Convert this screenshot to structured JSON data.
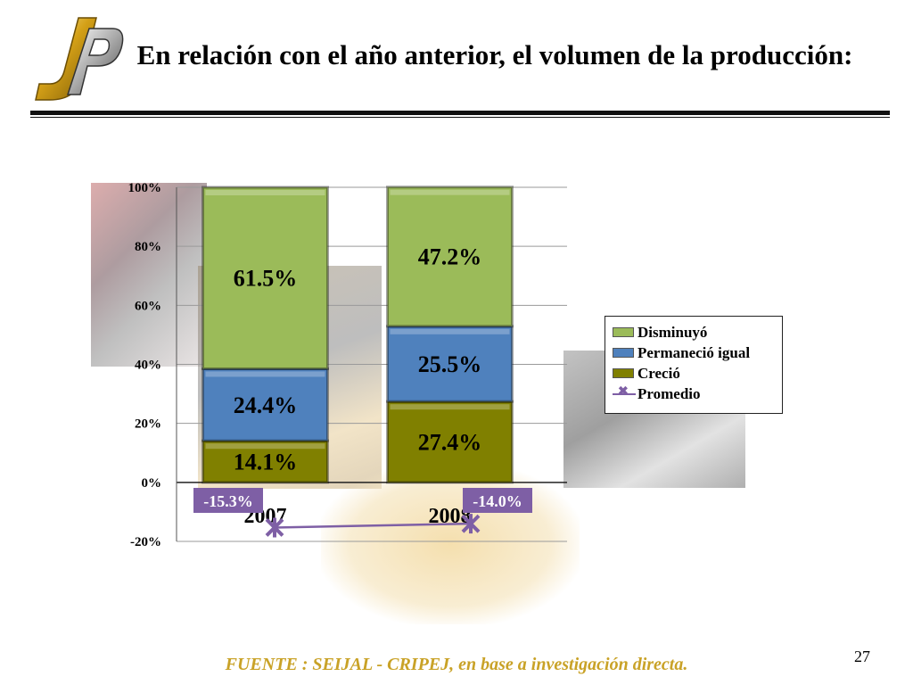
{
  "header": {
    "logo_text": "JP",
    "title": "En relación con el año anterior, el volumen de la producción:"
  },
  "chart_data": {
    "type": "bar",
    "stacked": true,
    "categories": [
      "2007",
      "2008"
    ],
    "series": [
      {
        "name": "Creció",
        "values": [
          14.1,
          27.4
        ],
        "labels": [
          "14.1%",
          "27.4%"
        ],
        "color": "#808000"
      },
      {
        "name": "Permaneció igual",
        "values": [
          24.4,
          25.5
        ],
        "labels": [
          "24.4%",
          "25.5%"
        ],
        "color": "#4f81bd"
      },
      {
        "name": "Disminuyó",
        "values": [
          61.5,
          47.2
        ],
        "labels": [
          "61.5%",
          "47.2%"
        ],
        "color": "#9bbb59"
      }
    ],
    "line_series": {
      "name": "Promedio",
      "values": [
        -15.3,
        -14.0
      ],
      "labels": [
        "-15.3%",
        "-14.0%"
      ],
      "color": "#7e5fa5"
    },
    "ylim": [
      -20,
      100
    ],
    "yticks": [
      -20,
      0,
      20,
      40,
      60,
      80,
      100
    ],
    "ytick_labels": [
      "-20%",
      "0%",
      "20%",
      "40%",
      "60%",
      "80%",
      "100%"
    ],
    "grid": true,
    "legend_position": "right",
    "legend_order": [
      "Disminuyó",
      "Permaneció igual",
      "Creció",
      "Promedio"
    ]
  },
  "footer": {
    "source": "FUENTE : SEIJAL - CRIPEJ, en base a investigación directa.",
    "page_number": "27"
  }
}
